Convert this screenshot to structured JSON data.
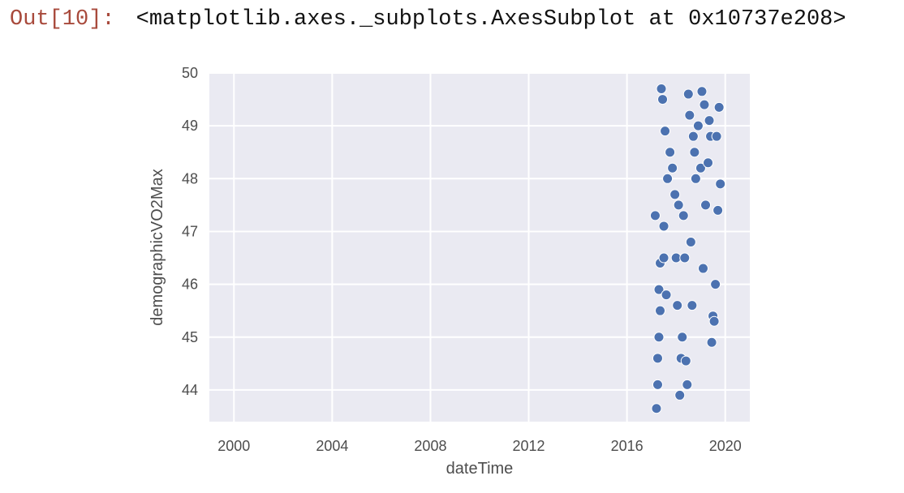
{
  "cell": {
    "prompt": "Out[10]:",
    "output_text": "<matplotlib.axes._subplots.AxesSubplot at 0x10737e208>"
  },
  "chart_data": {
    "type": "scatter",
    "xlabel": "dateTime",
    "ylabel": "demographicVO2Max",
    "xlim": [
      1999.0,
      2021.0
    ],
    "ylim": [
      43.4,
      50.0
    ],
    "xticks": [
      2000,
      2004,
      2008,
      2012,
      2016,
      2020
    ],
    "xtick_labels": [
      "2000",
      "2004",
      "2008",
      "2012",
      "2016",
      "2020"
    ],
    "yticks": [
      44,
      45,
      46,
      47,
      48,
      49,
      50
    ],
    "ytick_labels": [
      "44",
      "45",
      "46",
      "47",
      "48",
      "49",
      "50"
    ],
    "grid": true,
    "legend": "none",
    "marker_color": "#4c72b0",
    "marker_edge_color": "#ffffff",
    "background_color": "#eaeaf2",
    "x": [
      2017.15,
      2017.2,
      2017.25,
      2017.25,
      2017.3,
      2017.3,
      2017.35,
      2017.35,
      2017.4,
      2017.45,
      2017.5,
      2017.5,
      2017.55,
      2017.6,
      2017.65,
      2017.75,
      2017.85,
      2017.95,
      2018.0,
      2018.05,
      2018.1,
      2018.15,
      2018.2,
      2018.25,
      2018.3,
      2018.35,
      2018.4,
      2018.45,
      2018.5,
      2018.55,
      2018.6,
      2018.65,
      2018.7,
      2018.75,
      2018.8,
      2018.9,
      2019.0,
      2019.05,
      2019.1,
      2019.15,
      2019.2,
      2019.3,
      2019.35,
      2019.4,
      2019.45,
      2019.5,
      2019.55,
      2019.6,
      2019.65,
      2019.7,
      2019.75,
      2019.8
    ],
    "y": [
      47.3,
      43.65,
      44.1,
      44.6,
      45.0,
      45.9,
      45.5,
      46.4,
      49.7,
      49.5,
      47.1,
      46.5,
      48.9,
      45.8,
      48.0,
      48.5,
      48.2,
      47.7,
      46.5,
      45.6,
      47.5,
      43.9,
      44.6,
      45.0,
      47.3,
      46.5,
      44.55,
      44.1,
      49.6,
      49.2,
      46.8,
      45.6,
      48.8,
      48.5,
      48.0,
      49.0,
      48.2,
      49.65,
      46.3,
      49.4,
      47.5,
      48.3,
      49.1,
      48.8,
      44.9,
      45.4,
      45.3,
      46.0,
      48.8,
      47.4,
      49.35,
      47.9
    ]
  }
}
